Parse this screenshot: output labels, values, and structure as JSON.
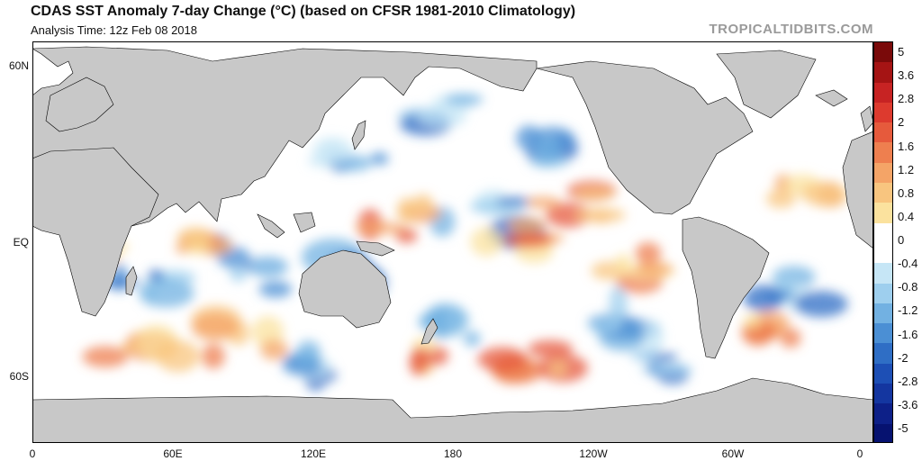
{
  "header": {
    "title": "CDAS SST Anomaly 7-day Change (°C) (based on CFSR 1981-2010 Climatology)",
    "subtitle": "Analysis Time: 12z Feb 08 2018",
    "source": "TROPICALTIDBITS.COM"
  },
  "axes": {
    "lat_labels": [
      "60N",
      "EQ",
      "60S"
    ],
    "lon_labels": [
      "0",
      "60E",
      "120E",
      "180",
      "120W",
      "60W",
      "0"
    ]
  },
  "colorbar": {
    "labels": [
      "5",
      "3.6",
      "2.8",
      "2",
      "1.6",
      "1.2",
      "0.8",
      "0.4",
      "0",
      "-0.4",
      "-0.8",
      "-1.2",
      "-1.6",
      "-2",
      "-2.8",
      "-3.6",
      "-5"
    ],
    "colors": [
      "#7a0a0a",
      "#a51414",
      "#c72323",
      "#dd3a2e",
      "#e65a3c",
      "#ee7f4f",
      "#f4a467",
      "#f8c57f",
      "#fbe29e",
      "#ffffff",
      "#ffffff",
      "#c6e6f6",
      "#9ecfee",
      "#72b1e2",
      "#4b8fd4",
      "#2f6ec5",
      "#1d4fb5",
      "#1436a0",
      "#0d2088",
      "#061270"
    ]
  },
  "map": {
    "ocean_color": "#ffffff",
    "land_color": "#c8c8c8",
    "border_color": "#000000"
  }
}
